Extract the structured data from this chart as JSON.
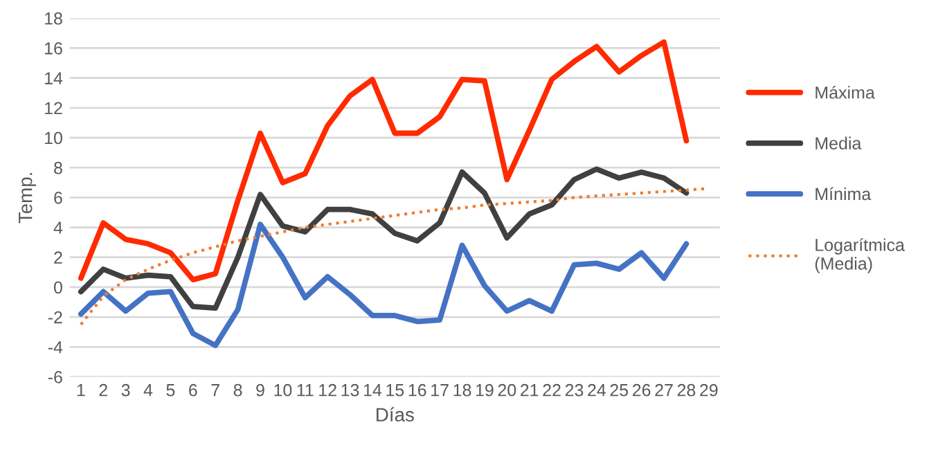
{
  "chart_data": {
    "type": "line",
    "xlabel": "Días",
    "ylabel": "Temp.",
    "categories": [
      "1",
      "2",
      "3",
      "4",
      "5",
      "6",
      "7",
      "8",
      "9",
      "10",
      "11",
      "12",
      "13",
      "14",
      "15",
      "16",
      "17",
      "18",
      "19",
      "20",
      "21",
      "22",
      "23",
      "24",
      "25",
      "26",
      "27",
      "28",
      "29"
    ],
    "series": [
      {
        "name": "Máxima",
        "color": "#ff2a00",
        "values": [
          0.6,
          4.3,
          3.2,
          2.9,
          2.3,
          0.5,
          0.9,
          5.8,
          10.3,
          7.0,
          7.6,
          10.8,
          12.8,
          13.9,
          10.3,
          10.3,
          11.4,
          13.9,
          13.8,
          7.2,
          10.5,
          13.9,
          15.1,
          16.1,
          14.4,
          15.5,
          16.4,
          9.8,
          null
        ]
      },
      {
        "name": "Media",
        "color": "#404040",
        "values": [
          -0.3,
          1.2,
          0.6,
          0.8,
          0.7,
          -1.3,
          -1.4,
          2.0,
          6.2,
          4.1,
          3.7,
          5.2,
          5.2,
          4.9,
          3.6,
          3.1,
          4.3,
          7.7,
          6.3,
          3.3,
          4.9,
          5.5,
          7.2,
          7.9,
          7.3,
          7.7,
          7.3,
          6.3,
          null
        ]
      },
      {
        "name": "Mínima",
        "color": "#4472c4",
        "values": [
          -1.8,
          -0.3,
          -1.6,
          -0.4,
          -0.3,
          -3.1,
          -3.9,
          -1.5,
          4.2,
          2.0,
          -0.7,
          0.7,
          -0.5,
          -1.9,
          -1.9,
          -2.3,
          -2.2,
          2.8,
          0.1,
          -1.6,
          -0.9,
          -1.6,
          1.5,
          1.6,
          1.2,
          2.3,
          0.6,
          2.9,
          null
        ]
      },
      {
        "name": "Logarítmica (Media)",
        "color": "#ed7d31",
        "line_style": "dotted",
        "values": [
          -2.5,
          -0.6,
          0.5,
          1.2,
          1.8,
          2.3,
          2.7,
          3.1,
          3.4,
          3.7,
          4.0,
          4.2,
          4.4,
          4.6,
          4.8,
          5.0,
          5.2,
          5.3,
          5.5,
          5.6,
          5.7,
          5.8,
          6.0,
          6.1,
          6.2,
          6.3,
          6.4,
          6.5,
          6.6
        ]
      }
    ],
    "ylim": [
      -6,
      18
    ],
    "yticks": [
      -6,
      -4,
      -2,
      0,
      2,
      4,
      6,
      8,
      10,
      12,
      14,
      16,
      18
    ],
    "grid": "y",
    "legend": "right",
    "line_style": "solid",
    "marker": "none"
  }
}
